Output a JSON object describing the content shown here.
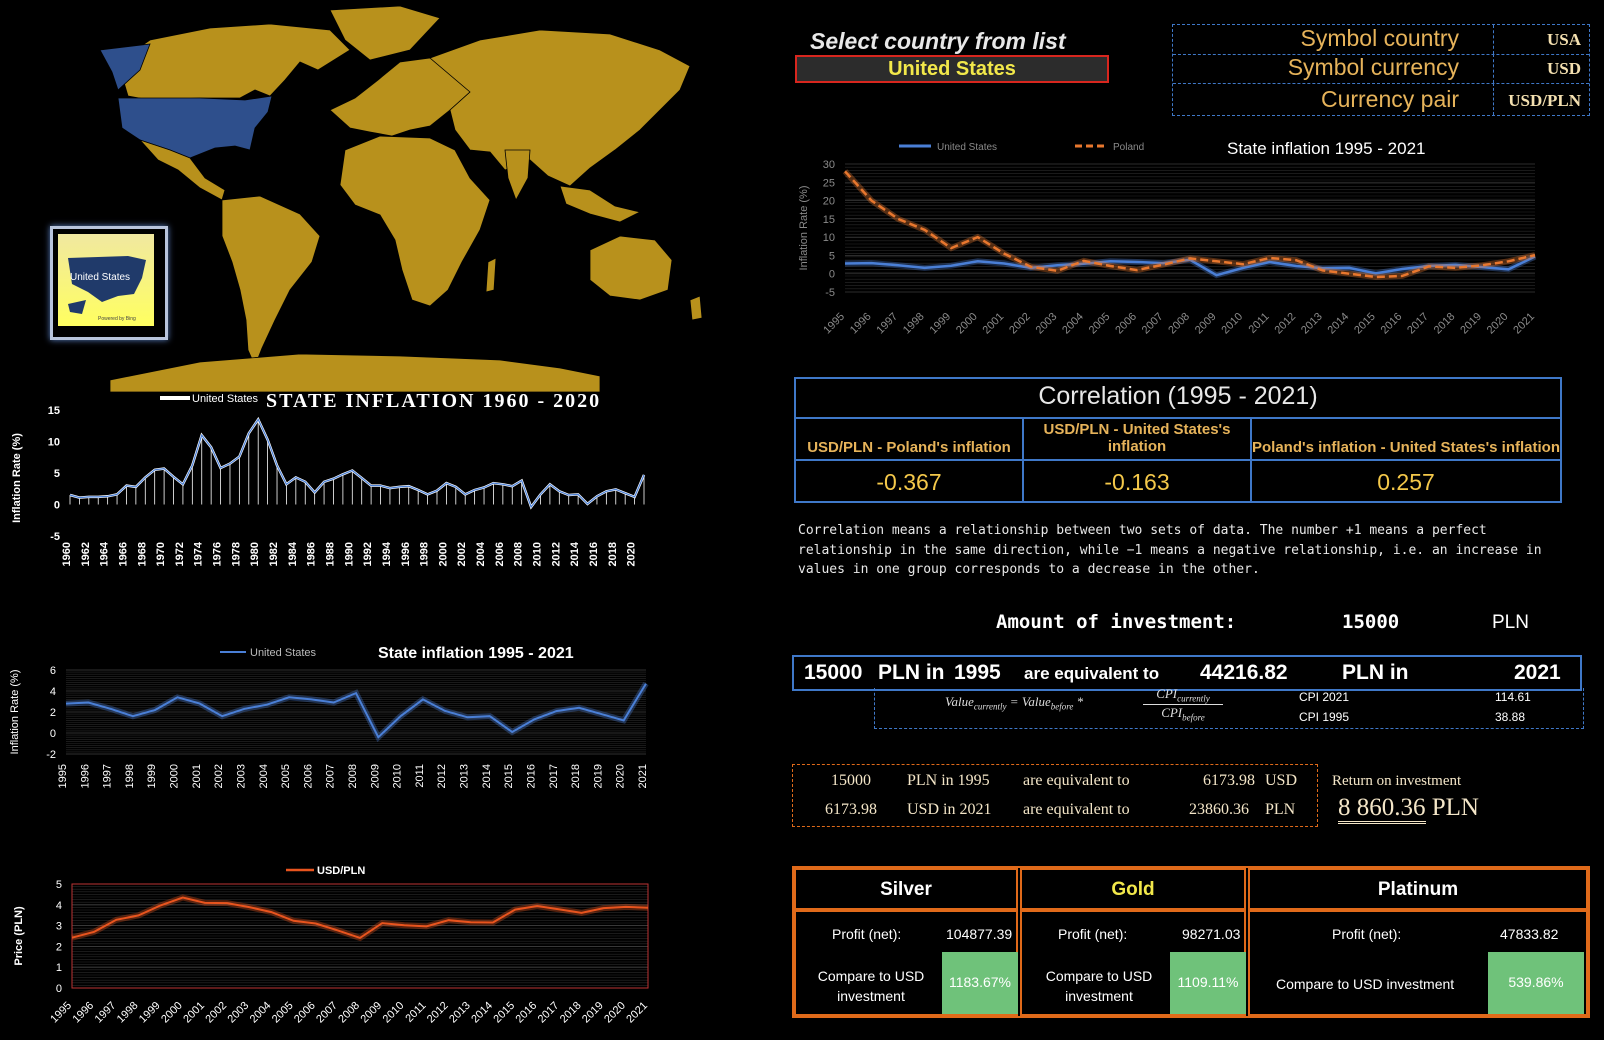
{
  "header": {
    "select_title": "Select country from list",
    "selected_country": "United States"
  },
  "info": {
    "rows": [
      {
        "label": "Symbol country",
        "value": "USA"
      },
      {
        "label": "Symbol currency",
        "value": "USD"
      },
      {
        "label": "Currency pair",
        "value": "USD/PLN"
      }
    ]
  },
  "map": {
    "highlight_label": "United States",
    "credit": "Powered by Bing",
    "land_color": "#b8911c",
    "highlight_color": "#2e4f8c"
  },
  "charts": {
    "top_right": {
      "title": "State inflation 1995 - 2021",
      "ylabel": "Inflation Rate (%)",
      "legend": [
        "United States",
        "Poland"
      ]
    },
    "left_1960": {
      "title": "STATE INFLATION 1960 - 2020",
      "ylabel": "Inflation Rate (%)",
      "legend": "United States"
    },
    "left_1995": {
      "title": "State inflation 1995 - 2021",
      "ylabel": "Inflation Rate (%)",
      "legend": "United States"
    },
    "usdpln": {
      "legend": "USD/PLN",
      "ylabel": "Price (PLN)"
    }
  },
  "chart_data": [
    {
      "type": "line",
      "title": "State inflation 1995 - 2021",
      "ylabel": "Inflation Rate (%)",
      "ylim": [
        -5,
        30
      ],
      "yticks": [
        -5,
        0,
        5,
        10,
        15,
        20,
        25,
        30
      ],
      "x": [
        1995,
        1996,
        1997,
        1998,
        1999,
        2000,
        2001,
        2002,
        2003,
        2004,
        2005,
        2006,
        2007,
        2008,
        2009,
        2010,
        2011,
        2012,
        2013,
        2014,
        2015,
        2016,
        2017,
        2018,
        2019,
        2020,
        2021
      ],
      "series": [
        {
          "name": "United States",
          "color": "#4a7fd6",
          "values": [
            2.8,
            2.9,
            2.3,
            1.6,
            2.2,
            3.4,
            2.8,
            1.6,
            2.3,
            2.7,
            3.4,
            3.2,
            2.9,
            3.8,
            -0.4,
            1.6,
            3.2,
            2.1,
            1.5,
            1.6,
            0.1,
            1.3,
            2.1,
            2.4,
            1.8,
            1.2,
            4.7
          ]
        },
        {
          "name": "Poland",
          "color": "#e8772e",
          "values": [
            28,
            20,
            15,
            12,
            7,
            10,
            5.5,
            1.9,
            0.8,
            3.5,
            2.1,
            1,
            2.5,
            4.2,
            3.4,
            2.6,
            4.3,
            3.7,
            0.9,
            0,
            -0.9,
            -0.6,
            2,
            1.6,
            2.3,
            3.4,
            5.1
          ]
        }
      ]
    },
    {
      "type": "area",
      "title": "STATE INFLATION 1960 - 2020",
      "ylabel": "Inflation Rate (%)",
      "ylim": [
        -5,
        15
      ],
      "yticks": [
        -5,
        0,
        5,
        10,
        15
      ],
      "x": [
        1960,
        1961,
        1962,
        1963,
        1964,
        1965,
        1966,
        1967,
        1968,
        1969,
        1970,
        1971,
        1972,
        1973,
        1974,
        1975,
        1976,
        1977,
        1978,
        1979,
        1980,
        1981,
        1982,
        1983,
        1984,
        1985,
        1986,
        1987,
        1988,
        1989,
        1990,
        1991,
        1992,
        1993,
        1994,
        1995,
        1996,
        1997,
        1998,
        1999,
        2000,
        2001,
        2002,
        2003,
        2004,
        2005,
        2006,
        2007,
        2008,
        2009,
        2010,
        2011,
        2012,
        2013,
        2014,
        2015,
        2016,
        2017,
        2018,
        2019,
        2020,
        2021
      ],
      "xticks": [
        1960,
        1962,
        1964,
        1966,
        1968,
        1970,
        1972,
        1974,
        1976,
        1978,
        1980,
        1982,
        1984,
        1986,
        1988,
        1990,
        1992,
        1994,
        1996,
        1998,
        2000,
        2002,
        2004,
        2006,
        2008,
        2010,
        2012,
        2014,
        2016,
        2018,
        2020
      ],
      "series": [
        {
          "name": "United States",
          "color": "#ffffff",
          "values": [
            1.5,
            1.1,
            1.2,
            1.2,
            1.3,
            1.6,
            3,
            2.8,
            4.3,
            5.5,
            5.7,
            4.4,
            3.2,
            6.2,
            11,
            9.1,
            5.8,
            6.5,
            7.6,
            11.3,
            13.5,
            10.3,
            6.2,
            3.2,
            4.3,
            3.6,
            1.9,
            3.6,
            4.1,
            4.8,
            5.4,
            4.2,
            3,
            3,
            2.6,
            2.8,
            2.9,
            2.3,
            1.6,
            2.2,
            3.4,
            2.8,
            1.6,
            2.3,
            2.7,
            3.4,
            3.2,
            2.9,
            3.8,
            -0.4,
            1.6,
            3.2,
            2.1,
            1.5,
            1.6,
            0.1,
            1.3,
            2.1,
            2.4,
            1.8,
            1.2,
            4.7
          ]
        }
      ]
    },
    {
      "type": "line",
      "title": "State inflation 1995 - 2021",
      "ylabel": "Inflation Rate (%)",
      "ylim": [
        -2,
        6
      ],
      "yticks": [
        -2,
        0,
        2,
        4,
        6
      ],
      "x": [
        1995,
        1996,
        1997,
        1998,
        1999,
        2000,
        2001,
        2002,
        2003,
        2004,
        2005,
        2006,
        2007,
        2008,
        2009,
        2010,
        2011,
        2012,
        2013,
        2014,
        2015,
        2016,
        2017,
        2018,
        2019,
        2020,
        2021
      ],
      "series": [
        {
          "name": "United States",
          "color": "#4a7fd6",
          "values": [
            2.8,
            2.9,
            2.3,
            1.6,
            2.2,
            3.4,
            2.8,
            1.6,
            2.3,
            2.7,
            3.4,
            3.2,
            2.9,
            3.8,
            -0.4,
            1.6,
            3.2,
            2.1,
            1.5,
            1.6,
            0.1,
            1.3,
            2.1,
            2.4,
            1.8,
            1.2,
            4.7
          ]
        }
      ]
    },
    {
      "type": "line",
      "ylabel": "Price (PLN)",
      "ylim": [
        0,
        5
      ],
      "yticks": [
        0,
        1,
        2,
        3,
        4,
        5
      ],
      "x": [
        1995,
        1996,
        1997,
        1998,
        1999,
        2000,
        2001,
        2002,
        2003,
        2004,
        2005,
        2006,
        2007,
        2008,
        2009,
        2010,
        2011,
        2012,
        2013,
        2014,
        2015,
        2016,
        2017,
        2018,
        2019,
        2020,
        2021
      ],
      "series": [
        {
          "name": "USD/PLN",
          "color": "#e8541e",
          "values": [
            2.42,
            2.7,
            3.28,
            3.49,
            3.97,
            4.35,
            4.09,
            4.08,
            3.89,
            3.65,
            3.23,
            3.1,
            2.77,
            2.41,
            3.12,
            3.02,
            2.96,
            3.26,
            3.16,
            3.15,
            3.77,
            3.94,
            3.78,
            3.61,
            3.84,
            3.9,
            3.86
          ]
        }
      ]
    }
  ],
  "correlation": {
    "title": "Correlation (1995 - 2021)",
    "headers": [
      "USD/PLN - Poland's inflation",
      "USD/PLN - United States's inflation",
      "Poland's inflation - United States's inflation"
    ],
    "values": [
      "-0.367",
      "-0.163",
      "0.257"
    ],
    "description": "Correlation means a relationship between two sets of data. The number +1 means a perfect relationship in the same direction, while −1 means a negative relationship, i.e. an increase in values in one group corresponds to a decrease in the other."
  },
  "investment": {
    "label": "Amount of investment:",
    "amount": "15000",
    "currency": "PLN"
  },
  "equivalent": {
    "amount": "15000",
    "pln_in": "PLN in",
    "year_from": "1995",
    "are_equivalent": "are equivalent to",
    "result": "44216.82",
    "pln_in2": "PLN in",
    "year_to": "2021",
    "cpi_label_1": "CPI 2021",
    "cpi_value_1": "114.61",
    "cpi_label_2": "CPI 1995",
    "cpi_value_2": "38.88",
    "formula": {
      "lhs": "Value",
      "lhs_sub": "currently",
      "rhs": "Value",
      "rhs_sub": "before",
      "num": "CPI",
      "num_sub": "currently",
      "den": "CPI",
      "den_sub": "before"
    }
  },
  "return_box": {
    "rows": [
      {
        "a": "15000",
        "b": "PLN  in 1995",
        "c": "are equivalent to",
        "d": "6173.98",
        "e": "USD"
      },
      {
        "a": "6173.98",
        "b": "USD  in 2021",
        "c": "are equivalent to",
        "d": "23860.36",
        "e": "PLN"
      }
    ],
    "roi_label": "Return on investment",
    "roi_value": "8 860.36",
    "roi_currency": "PLN"
  },
  "metals": [
    {
      "name": "Silver",
      "color": "#ffffff",
      "profit_label": "Profit (net):",
      "profit": "104877.39",
      "compare_label": "Compare to USD investment",
      "compare": "1183.67%"
    },
    {
      "name": "Gold",
      "color": "#f2e84a",
      "profit_label": "Profit (net):",
      "profit": "98271.03",
      "compare_label": "Compare to USD investment",
      "compare": "1109.11%"
    },
    {
      "name": "Platinum",
      "color": "#ffffff",
      "profit_label": "Profit (net):",
      "profit": "47833.82",
      "compare_label": "Compare to USD investment",
      "compare": "539.86%"
    }
  ]
}
